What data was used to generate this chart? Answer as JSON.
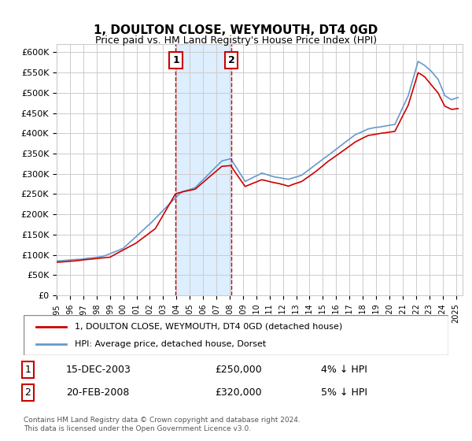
{
  "title": "1, DOULTON CLOSE, WEYMOUTH, DT4 0GD",
  "subtitle": "Price paid vs. HM Land Registry's House Price Index (HPI)",
  "ylabel_ticks": [
    "£0",
    "£50K",
    "£100K",
    "£150K",
    "£200K",
    "£250K",
    "£300K",
    "£350K",
    "£400K",
    "£450K",
    "£500K",
    "£550K",
    "£600K"
  ],
  "ylim": [
    0,
    620000
  ],
  "yticks": [
    0,
    50000,
    100000,
    150000,
    200000,
    250000,
    300000,
    350000,
    400000,
    450000,
    500000,
    550000,
    600000
  ],
  "sale1_date": "15-DEC-2003",
  "sale1_price": 250000,
  "sale1_label": "1",
  "sale1_pct": "4% ↓ HPI",
  "sale2_date": "20-FEB-2008",
  "sale2_price": 320000,
  "sale2_label": "2",
  "sale2_pct": "5% ↓ HPI",
  "legend_line1": "1, DOULTON CLOSE, WEYMOUTH, DT4 0GD (detached house)",
  "legend_line2": "HPI: Average price, detached house, Dorset",
  "footer": "Contains HM Land Registry data © Crown copyright and database right 2024.\nThis data is licensed under the Open Government Licence v3.0.",
  "red_color": "#cc0000",
  "blue_color": "#6699cc",
  "shading_color": "#ddeeff",
  "grid_color": "#cccccc",
  "background_color": "#ffffff"
}
